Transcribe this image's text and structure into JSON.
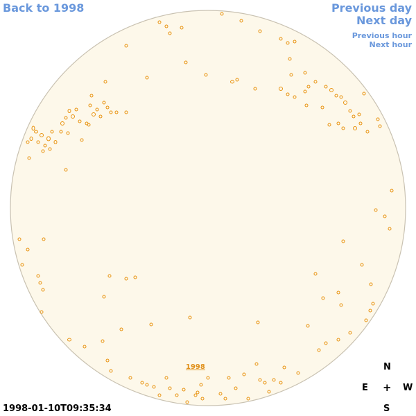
{
  "nav": {
    "back_label": "Back to 1998",
    "previous_day_label": "Previous day",
    "next_day_label": "Next day",
    "previous_hour_label": "Previous hour",
    "next_hour_label": "Next hour"
  },
  "disk": {
    "year_link": "1998",
    "fill_color": "#fdf8ea",
    "border_color": "#c9c2b2",
    "feature_color": "#e8920e"
  },
  "timestamp": "1998-01-10T09:35:34",
  "compass": {
    "north": "N",
    "east": "E",
    "center": "+",
    "west": "W",
    "south": "S"
  },
  "colors": {
    "link": "#6a98dc",
    "text": "#000000"
  }
}
